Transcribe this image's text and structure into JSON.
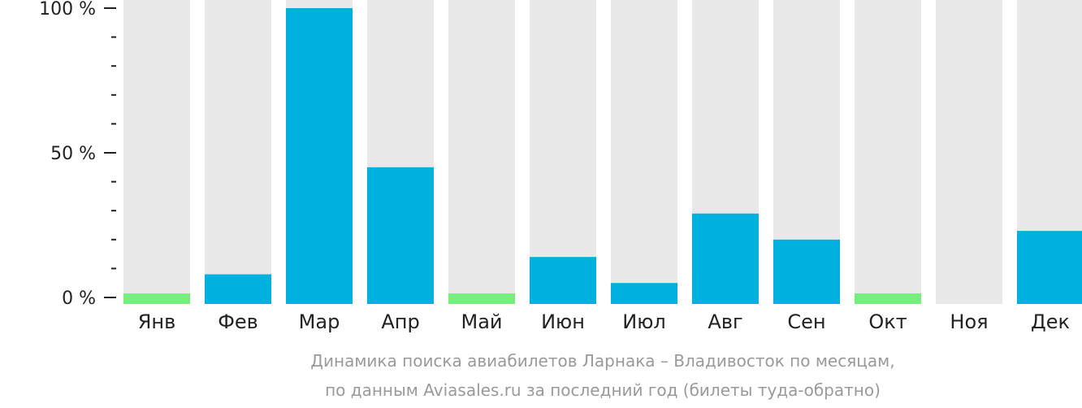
{
  "chart_data": {
    "type": "bar",
    "categories": [
      "Янв",
      "Фев",
      "Мар",
      "Апр",
      "Май",
      "Июн",
      "Июл",
      "Авг",
      "Сен",
      "Окт",
      "Ноя",
      "Дек"
    ],
    "values": [
      1,
      8,
      100,
      45,
      1,
      14,
      5,
      29,
      20,
      1,
      0,
      23
    ],
    "ylim": [
      0,
      100
    ],
    "yticks": [
      {
        "value": 100,
        "label": "100 %"
      },
      {
        "value": 50,
        "label": "50 %"
      },
      {
        "value": 0,
        "label": "0 %"
      }
    ],
    "title": "",
    "xlabel": "",
    "ylabel": "",
    "caption_line1": "Динамика поиска авиабилетов Ларнака – Владивосток по месяцам,",
    "caption_line2": "по данным Aviasales.ru за последний год (билеты туда-обратно)",
    "colors": {
      "bar": "#00b1dd",
      "bar_low": "#76ee7d",
      "background_bar": "#e8e8e8",
      "text": "#222222",
      "caption": "#9a9a9a"
    }
  }
}
